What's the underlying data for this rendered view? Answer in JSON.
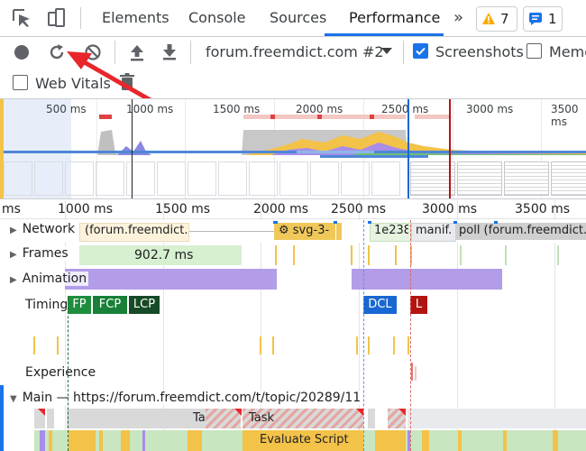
{
  "tabs": {
    "elements": "Elements",
    "console": "Console",
    "sources": "Sources",
    "performance": "Performance",
    "more": "»"
  },
  "badges": {
    "warnings": "7",
    "messages": "1"
  },
  "toolbar": {
    "profile_select": "forum.freemdict.com #2",
    "screenshots_label": "Screenshots",
    "memory_label": "Memo",
    "web_vitals_label": "Web Vitals",
    "screenshots_checked": true,
    "memory_checked": false,
    "web_vitals_checked": false
  },
  "overview": {
    "ticks": [
      "500 ms",
      "1000 ms",
      "1500 ms",
      "2000 ms",
      "2500 ms",
      "3000 ms",
      "3500 ms"
    ]
  },
  "ruler": {
    "ticks": [
      "ms",
      "1000 ms",
      "1500 ms",
      "2000 ms",
      "2500 ms",
      "3000 ms",
      "3500 ms"
    ]
  },
  "tracks": {
    "network": "Network",
    "frames": "Frames",
    "animation": "Animation",
    "timings": "Timings",
    "experience": "Experience",
    "main": "Main — https://forum.freemdict.com/t/topic/20289/11"
  },
  "network_items": {
    "item1": "(forum.freemdict.",
    "item2": "⚙ svg-3-",
    "item3": "1e238",
    "item4": "manif.",
    "item5": "poll (forum.freemdict."
  },
  "frames": {
    "duration": "902.7 ms"
  },
  "timings": {
    "fp": "FP",
    "fcp": "FCP",
    "lcp": "LCP",
    "dcl": "DCL",
    "l": "L"
  },
  "main_items": {
    "task1": "Task",
    "task2": "Task",
    "evaluate": "Evaluate Script"
  },
  "colors": {
    "accent": "#1a73e8",
    "fp": "#1e8e3e",
    "fcp": "#188038",
    "lcp": "#174a26",
    "dcl": "#1967d2",
    "load": "#b31412",
    "animation": "#b39ce8",
    "frames": "#d7f0d0",
    "scripting": "#f3c248",
    "rendering": "#a88de8",
    "task": "#d9d9d9",
    "arrow": "#e8262b"
  }
}
